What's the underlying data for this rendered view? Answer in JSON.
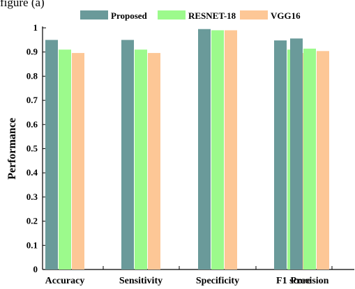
{
  "top_caption": "figure (a)",
  "chart_data": {
    "type": "bar",
    "categories": [
      "Accuracy",
      "Sensitivity",
      "Specificity",
      "F1 score",
      "Precision"
    ],
    "series": [
      {
        "name": "Proposed",
        "color": "#6a9a9a",
        "values": [
          0.95,
          0.95,
          0.995,
          0.948,
          0.956
        ]
      },
      {
        "name": "RESNET-18",
        "color": "#9cfa8c",
        "values": [
          0.91,
          0.91,
          0.99,
          0.91,
          0.914
        ]
      },
      {
        "name": "VGG16",
        "color": "#fdc796",
        "values": [
          0.896,
          0.896,
          0.99,
          0.896,
          0.904
        ]
      }
    ],
    "ylabel": "Performance",
    "xlabel": "",
    "ylim": [
      0,
      1
    ],
    "yticks": [
      "0",
      "0.1",
      "0.2",
      "0.3",
      "0.4",
      "0.5",
      "0.6",
      "0.7",
      "0.8",
      "0.9",
      "1"
    ],
    "grid": false,
    "legend_position": "top-center"
  }
}
